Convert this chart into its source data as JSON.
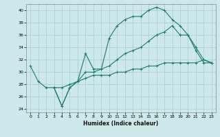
{
  "xlabel": "Humidex (Indice chaleur)",
  "bg_color": "#cce8e8",
  "grid_color": "#aacfcf",
  "line_color": "#1a7a6e",
  "xlim": [
    -0.5,
    23.5
  ],
  "ylim": [
    23.5,
    41
  ],
  "xticks": [
    0,
    1,
    2,
    3,
    4,
    5,
    6,
    7,
    8,
    9,
    10,
    11,
    12,
    13,
    14,
    15,
    16,
    17,
    18,
    19,
    20,
    21,
    22,
    23
  ],
  "yticks": [
    24,
    26,
    28,
    30,
    32,
    34,
    36,
    38,
    40
  ],
  "series1_x": [
    0,
    1,
    2,
    3,
    4,
    5,
    6,
    7,
    8,
    9,
    10,
    11,
    12,
    13,
    14,
    15,
    16,
    17,
    18,
    19,
    20,
    21,
    22,
    23
  ],
  "series1_y": [
    31,
    28.5,
    27.5,
    27.5,
    27.5,
    28,
    28.5,
    29,
    29.5,
    29.5,
    29.5,
    30,
    30,
    30.5,
    30.5,
    31,
    31,
    31.5,
    31.5,
    31.5,
    31.5,
    31.5,
    32,
    31.5
  ],
  "series2_x": [
    3,
    4,
    5,
    6,
    7,
    8,
    9,
    10,
    11,
    12,
    13,
    14,
    15,
    16,
    17,
    18,
    19,
    20,
    21,
    22,
    23
  ],
  "series2_y": [
    27.5,
    24.5,
    27.5,
    28.5,
    33,
    30.5,
    30.5,
    35.5,
    37.5,
    38.5,
    39,
    39,
    40,
    40.5,
    40,
    38.5,
    37.5,
    36,
    33.5,
    31.5,
    31.5
  ],
  "series3_x": [
    3,
    4,
    5,
    6,
    7,
    8,
    9,
    10,
    11,
    12,
    13,
    14,
    15,
    16,
    17,
    18,
    19,
    20,
    21,
    22,
    23
  ],
  "series3_y": [
    27.5,
    24.5,
    27.5,
    28.5,
    30,
    30,
    30.5,
    31,
    32,
    33,
    33.5,
    34,
    35,
    36,
    36.5,
    37.5,
    36,
    36,
    34,
    32,
    31.5
  ]
}
